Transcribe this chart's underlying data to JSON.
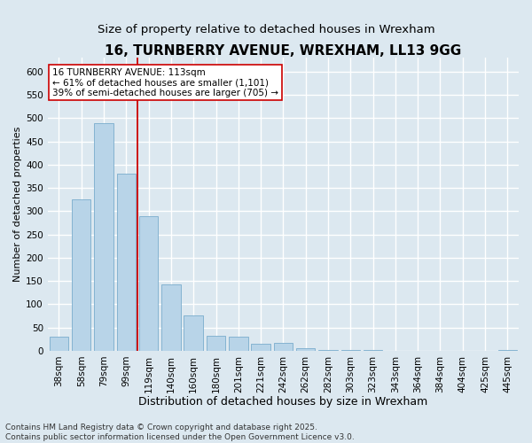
{
  "title": "16, TURNBERRY AVENUE, WREXHAM, LL13 9GG",
  "subtitle": "Size of property relative to detached houses in Wrexham",
  "xlabel": "Distribution of detached houses by size in Wrexham",
  "ylabel": "Number of detached properties",
  "footer": "Contains HM Land Registry data © Crown copyright and database right 2025.\nContains public sector information licensed under the Open Government Licence v3.0.",
  "categories": [
    "38sqm",
    "58sqm",
    "79sqm",
    "99sqm",
    "119sqm",
    "140sqm",
    "160sqm",
    "180sqm",
    "201sqm",
    "221sqm",
    "242sqm",
    "262sqm",
    "282sqm",
    "303sqm",
    "323sqm",
    "343sqm",
    "364sqm",
    "384sqm",
    "404sqm",
    "425sqm",
    "445sqm"
  ],
  "values": [
    30,
    325,
    490,
    380,
    290,
    143,
    76,
    33,
    30,
    15,
    16,
    6,
    2,
    1,
    1,
    0,
    0,
    0,
    0,
    0,
    1
  ],
  "bar_color": "#b8d4e8",
  "bar_edge_color": "#7aaccc",
  "vline_color": "#cc0000",
  "vline_x": 3.5,
  "annotation_line1": "16 TURNBERRY AVENUE: 113sqm",
  "annotation_line2": "← 61% of detached houses are smaller (1,101)",
  "annotation_line3": "39% of semi-detached houses are larger (705) →",
  "annotation_box_color": "#ffffff",
  "annotation_box_edge_color": "#cc0000",
  "ylim": [
    0,
    630
  ],
  "yticks": [
    0,
    50,
    100,
    150,
    200,
    250,
    300,
    350,
    400,
    450,
    500,
    550,
    600
  ],
  "background_color": "#dce8f0",
  "plot_background_color": "#dce8f0",
  "grid_color": "#ffffff",
  "title_fontsize": 11,
  "subtitle_fontsize": 9.5,
  "xlabel_fontsize": 9,
  "ylabel_fontsize": 8,
  "tick_fontsize": 7.5,
  "annotation_fontsize": 7.5,
  "footer_fontsize": 6.5
}
